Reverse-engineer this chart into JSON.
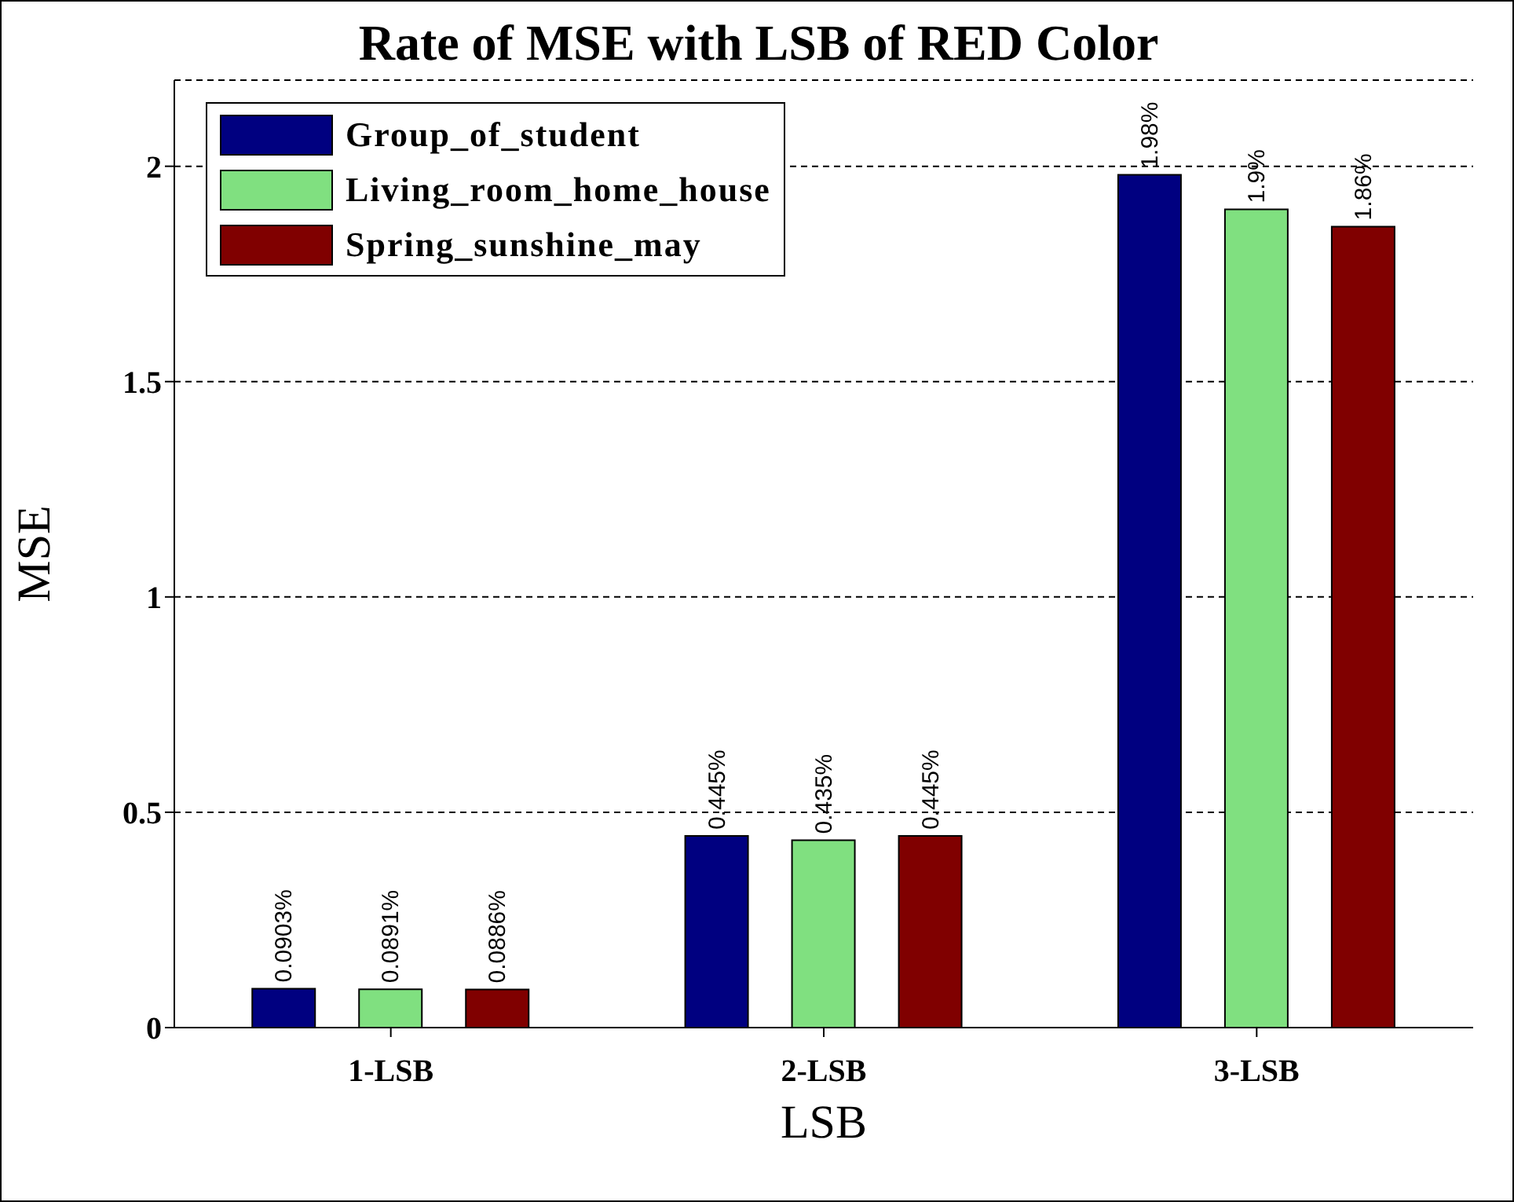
{
  "chart_data": {
    "type": "bar",
    "title": "Rate of MSE with LSB of RED Color",
    "xlabel": "LSB",
    "ylabel": "MSE",
    "categories": [
      "1-LSB",
      "2-LSB",
      "3-LSB"
    ],
    "series": [
      {
        "name": "Group_of_student",
        "color": "#000080",
        "values": [
          0.0903,
          0.445,
          1.98
        ],
        "value_labels": [
          "0.0903%",
          "0.445%",
          "1.98%"
        ]
      },
      {
        "name": "Living_room_home_house",
        "color": "#80e080",
        "values": [
          0.0891,
          0.435,
          1.9
        ],
        "value_labels": [
          "0.0891%",
          "0.435%",
          "1.9%"
        ]
      },
      {
        "name": "Spring_sunshine_may",
        "color": "#800000",
        "values": [
          0.0886,
          0.445,
          1.86
        ],
        "value_labels": [
          "0.0886%",
          "0.445%",
          "1.86%"
        ]
      }
    ],
    "ylim": [
      0,
      2.2
    ],
    "yticks": [
      0,
      0.5,
      1,
      1.5,
      2
    ],
    "grid": "y",
    "legend": "top left"
  }
}
